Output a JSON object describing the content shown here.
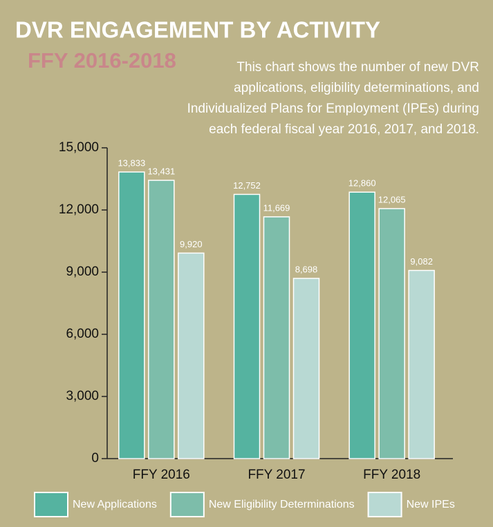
{
  "chart_data": {
    "type": "bar",
    "title": "DVR ENGAGEMENT BY ACTIVITY",
    "subtitle": "FFY 2016-2018",
    "description": [
      "This chart shows the number of new DVR",
      "applications, eligibility determinations, and",
      "Individualized Plans for Employment (IPEs) during",
      "each federal fiscal year 2016, 2017, and 2018."
    ],
    "categories": [
      "FFY 2016",
      "FFY 2017",
      "FFY 2018"
    ],
    "series": [
      {
        "name": "New Applications",
        "color": "#55b3a0",
        "values": [
          13833,
          12752,
          12860
        ],
        "value_labels": [
          "13,833",
          "12,752",
          "12,860"
        ]
      },
      {
        "name": "New Eligibility Determinations",
        "color": "#7dbdaa",
        "values": [
          13431,
          11669,
          12065
        ],
        "value_labels": [
          "13,431",
          "11,669",
          "12,065"
        ]
      },
      {
        "name": "New IPEs",
        "color": "#b8d9d3",
        "values": [
          9920,
          8698,
          9082
        ],
        "value_labels": [
          "9,920",
          "8,698",
          "9,082"
        ]
      }
    ],
    "ylim": [
      0,
      15000
    ],
    "yticks": [
      0,
      {
        "value": 3000,
        "label": "3,000"
      },
      {
        "value": 6000,
        "label": "6,000"
      },
      {
        "value": 9000,
        "label": "9,000"
      },
      {
        "value": 12000,
        "label": "12,000"
      },
      {
        "value": 15000,
        "label": "15,000"
      }
    ],
    "legend": "bottom"
  }
}
